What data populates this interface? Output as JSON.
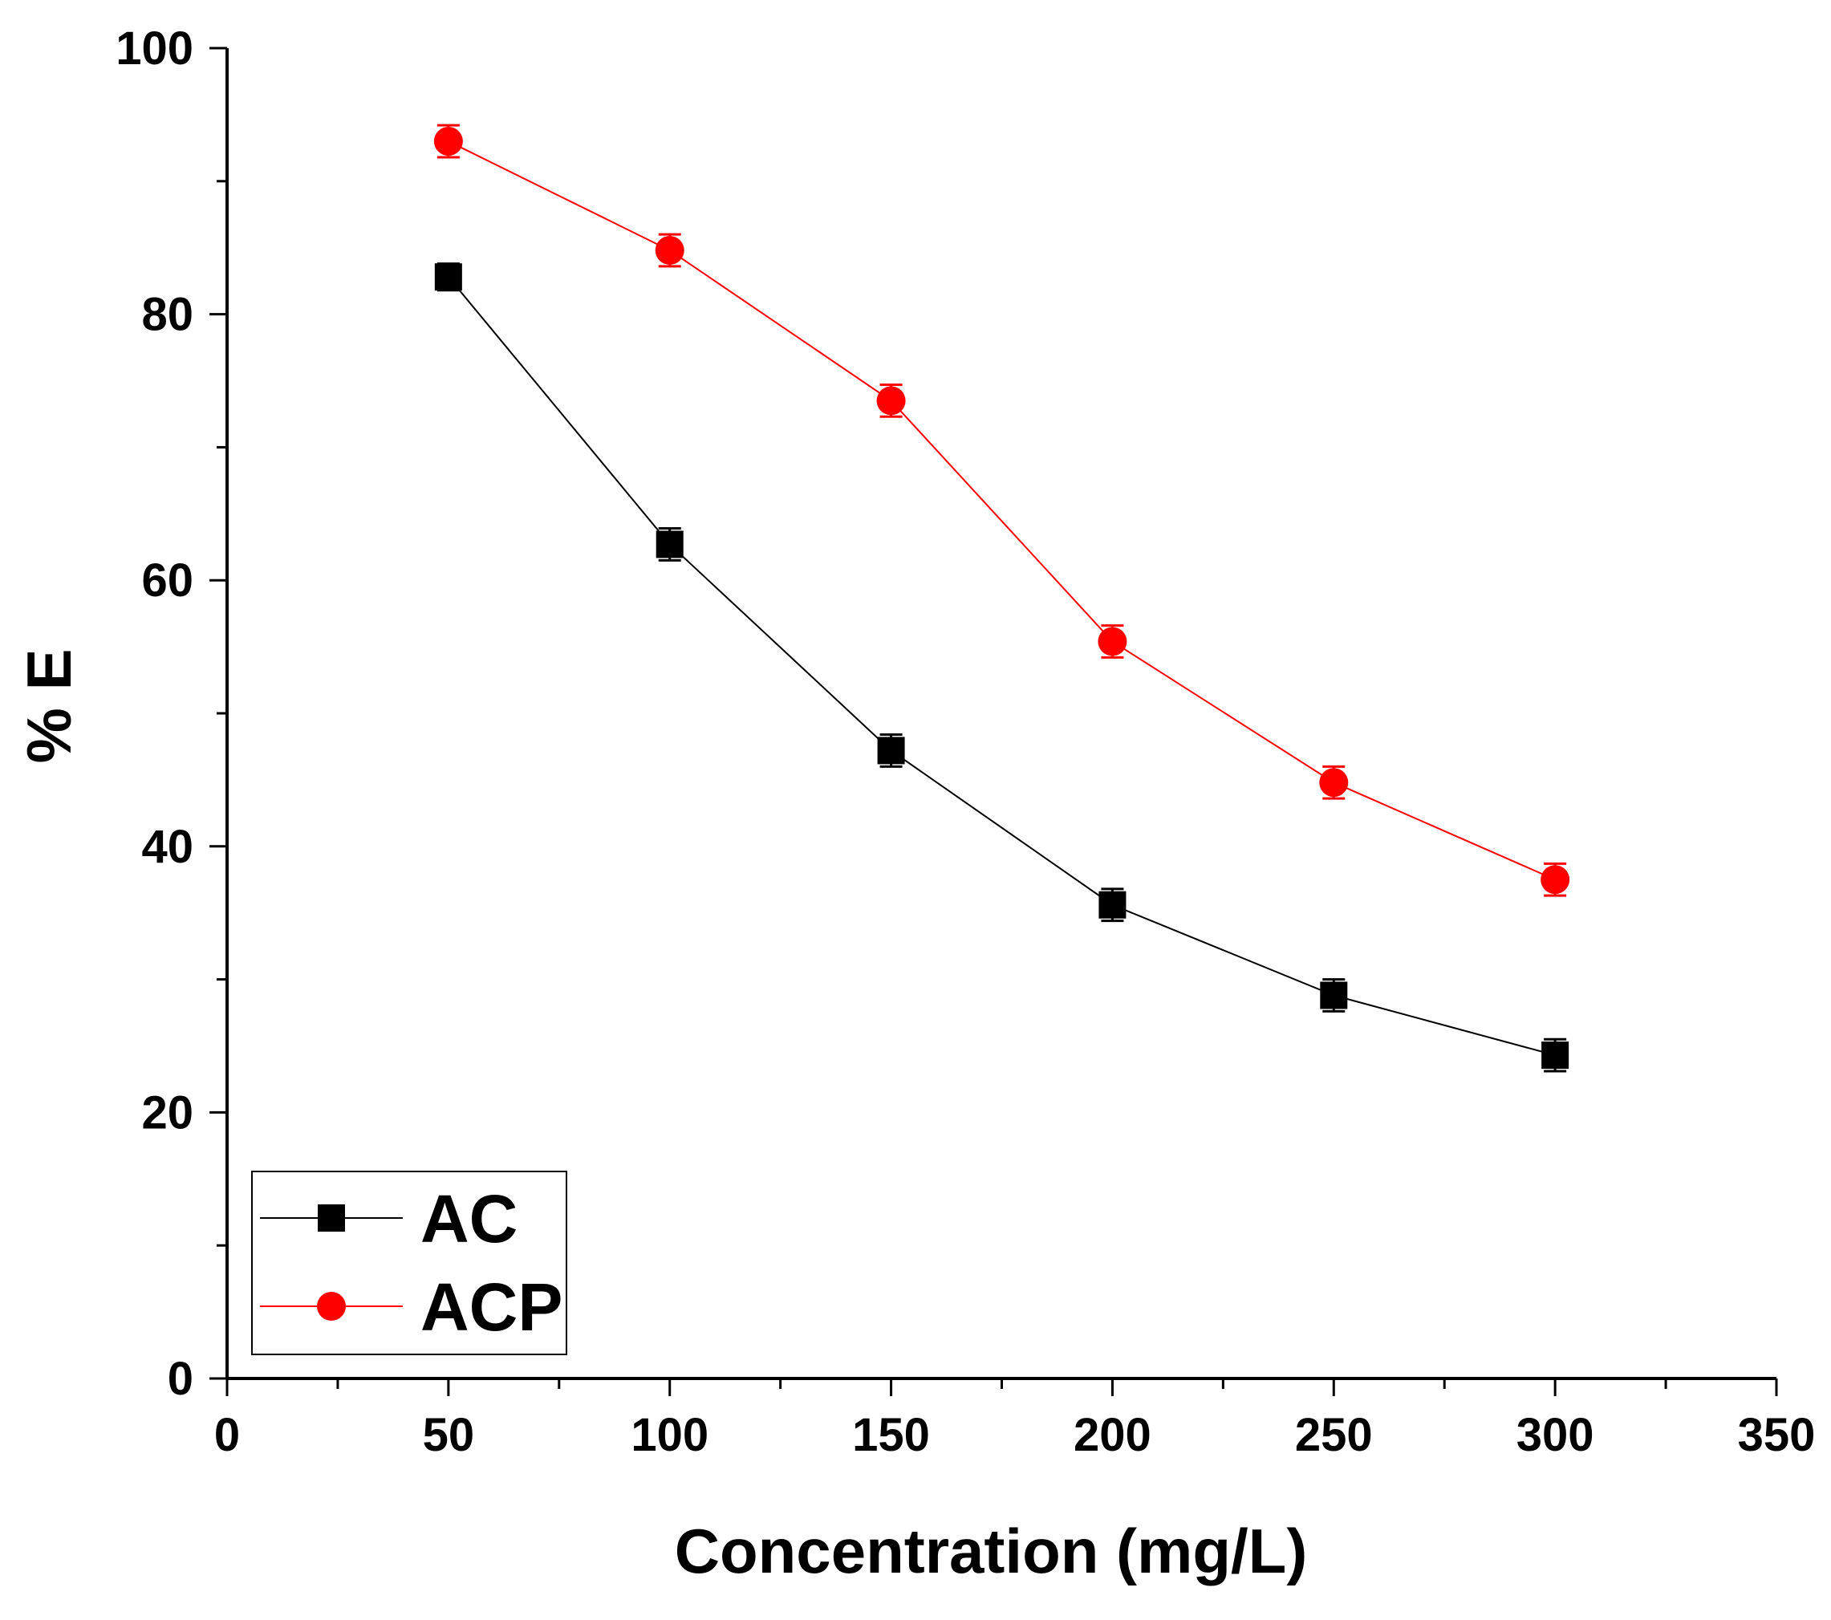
{
  "chart_data": {
    "type": "line",
    "xlabel": "Concentration (mg/L)",
    "ylabel": "% E",
    "xlim": [
      0,
      350
    ],
    "ylim": [
      0,
      100
    ],
    "x_ticks": [
      0,
      50,
      100,
      150,
      200,
      250,
      300,
      350
    ],
    "y_ticks": [
      0,
      20,
      40,
      60,
      80,
      100
    ],
    "x_minor_step": 25,
    "y_minor_step": 10,
    "grid": false,
    "legend_position": "bottom-left",
    "x": [
      50,
      100,
      150,
      200,
      250,
      300
    ],
    "series": [
      {
        "name": "AC",
        "marker": "square",
        "color": "#000000",
        "values": [
          82.8,
          62.7,
          47.2,
          35.6,
          28.8,
          24.3
        ],
        "error": [
          1.0,
          1.2,
          1.2,
          1.2,
          1.2,
          1.2
        ]
      },
      {
        "name": "ACP",
        "marker": "circle",
        "color": "#ff0000",
        "values": [
          93.0,
          84.8,
          73.5,
          55.4,
          44.8,
          37.5
        ],
        "error": [
          1.2,
          1.2,
          1.2,
          1.2,
          1.2,
          1.2
        ]
      }
    ]
  }
}
